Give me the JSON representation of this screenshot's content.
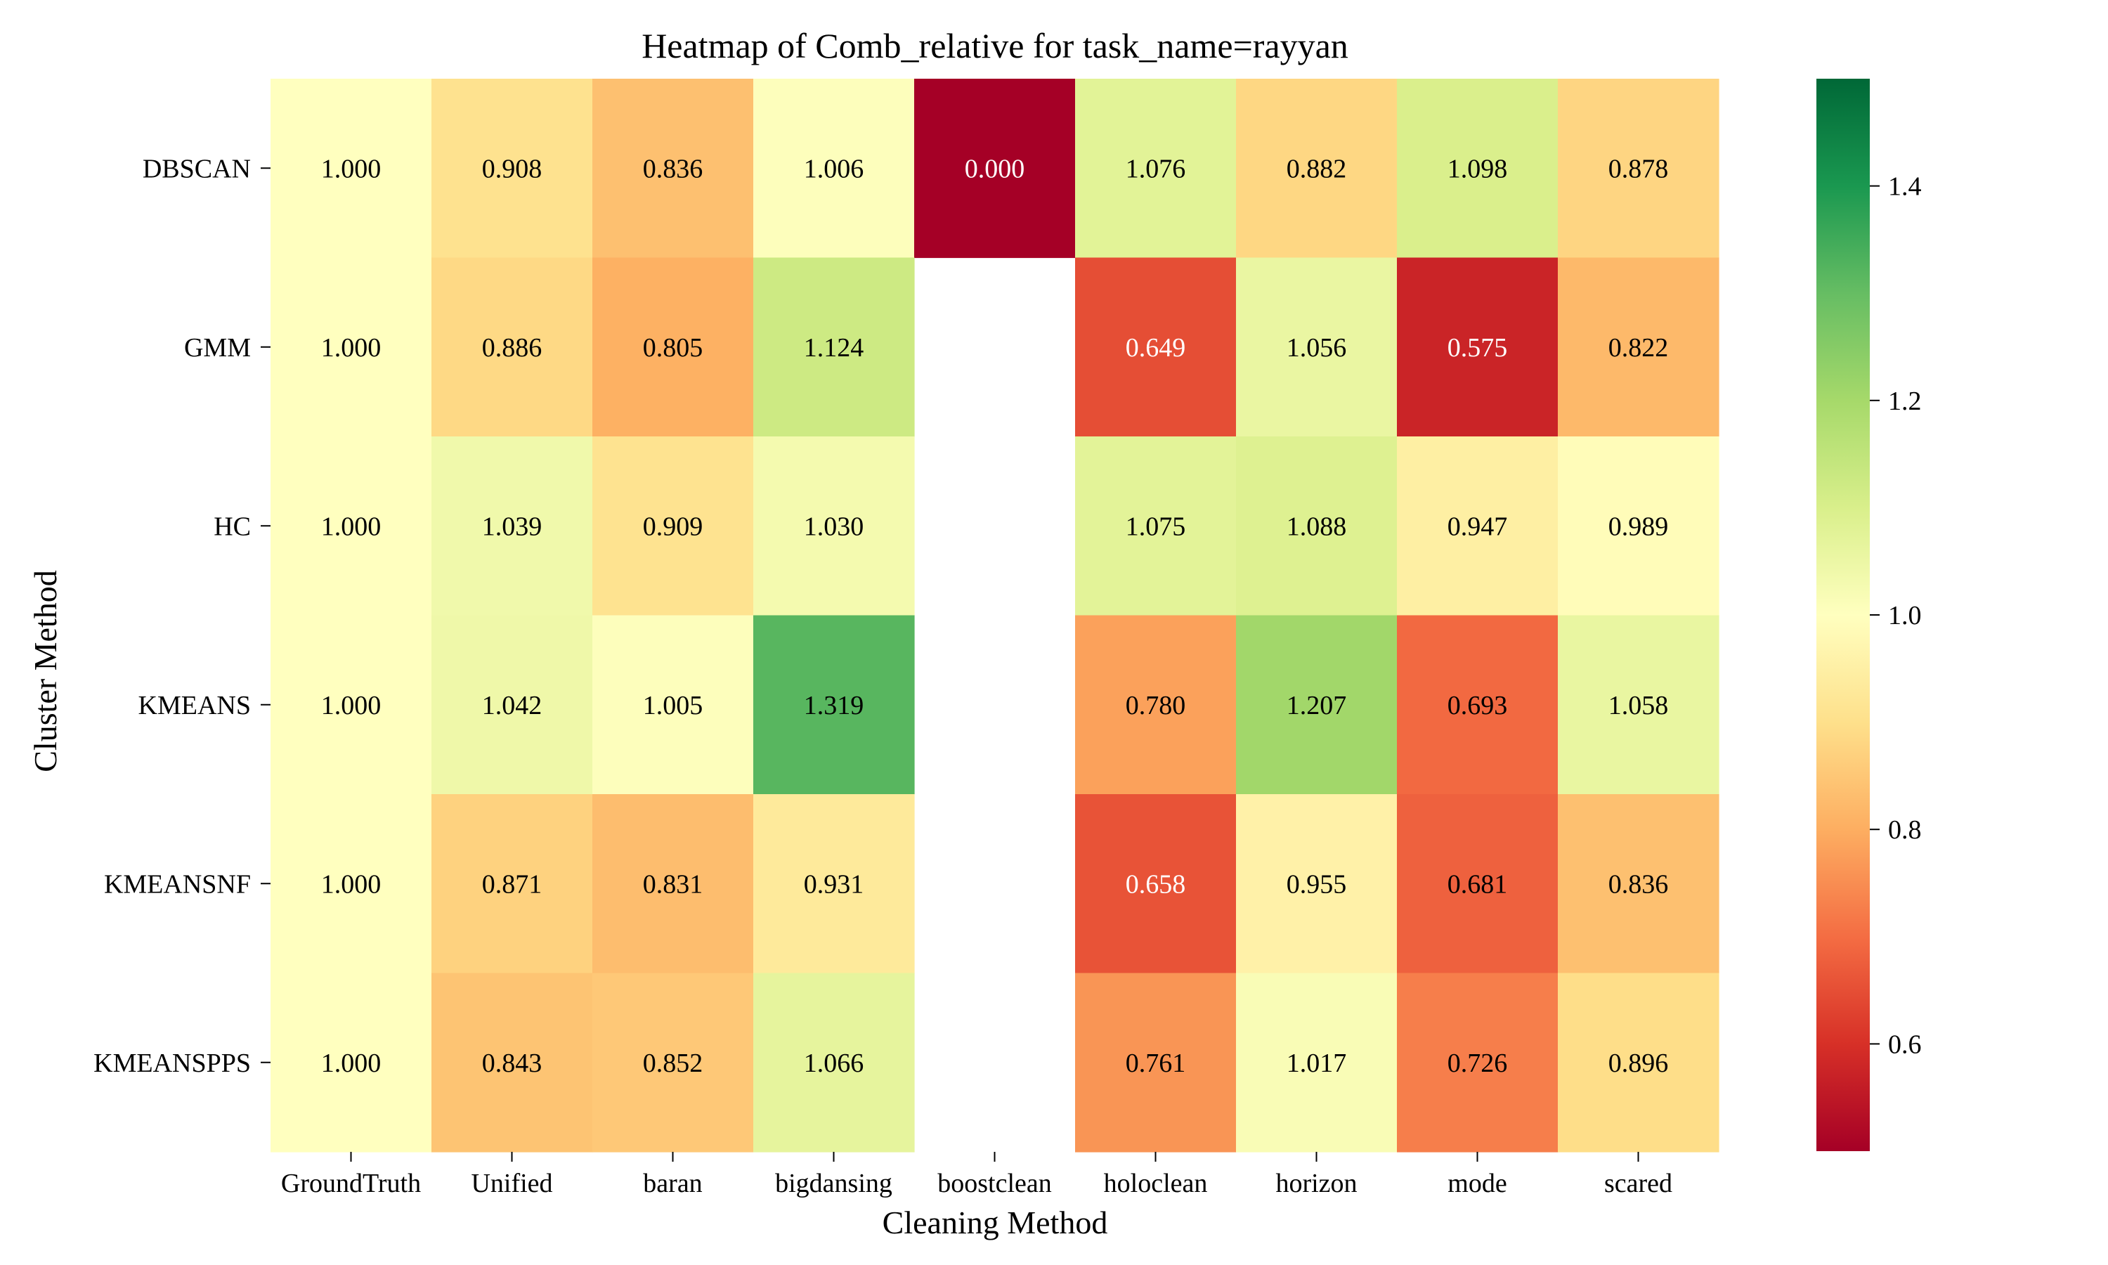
{
  "chart_data": {
    "type": "heatmap",
    "title": "Heatmap of Comb_relative for task_name=rayyan",
    "xlabel": "Cleaning Method",
    "ylabel": "Cluster Method",
    "columns": [
      "GroundTruth",
      "Unified",
      "baran",
      "bigdansing",
      "boostclean",
      "holoclean",
      "horizon",
      "mode",
      "scared"
    ],
    "rows": [
      "DBSCAN",
      "GMM",
      "HC",
      "KMEANS",
      "KMEANSNF",
      "KMEANSPPS"
    ],
    "values": [
      [
        1.0,
        0.908,
        0.836,
        1.006,
        0.0,
        1.076,
        0.882,
        1.098,
        0.878
      ],
      [
        1.0,
        0.886,
        0.805,
        1.124,
        null,
        0.649,
        1.056,
        0.575,
        0.822
      ],
      [
        1.0,
        1.039,
        0.909,
        1.03,
        null,
        1.075,
        1.088,
        0.947,
        0.989
      ],
      [
        1.0,
        1.042,
        1.005,
        1.319,
        null,
        0.78,
        1.207,
        0.693,
        1.058
      ],
      [
        1.0,
        0.871,
        0.831,
        0.931,
        null,
        0.658,
        0.955,
        0.681,
        0.836
      ],
      [
        1.0,
        0.843,
        0.852,
        1.066,
        null,
        0.761,
        1.017,
        0.726,
        0.896
      ]
    ],
    "colorbar": {
      "vmin": 0.5,
      "vmax": 1.5,
      "ticks": [
        0.6,
        0.8,
        1.0,
        1.2,
        1.4
      ],
      "colormap": "RdYlGn"
    }
  }
}
